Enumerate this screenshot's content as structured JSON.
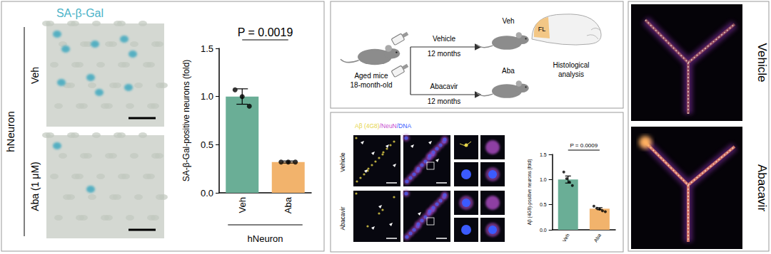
{
  "figure": {
    "panel_a": {
      "title": "SA-β-Gal",
      "group_label": "hNeuron",
      "row_labels": [
        "Veh",
        "Aba (1 μM)"
      ]
    },
    "schematic": {
      "start": [
        "Aged mice",
        "18-month-old"
      ],
      "arms": [
        {
          "treatment": "Vehicle",
          "duration": "12 months",
          "group": "Veh"
        },
        {
          "treatment": "Abacavir",
          "duration": "12 months",
          "group": "Aba"
        }
      ],
      "region": "FL",
      "readout": [
        "Histological",
        "analysis"
      ]
    },
    "panel_c": {
      "legend": [
        {
          "text": "Aβ (4G8)",
          "color": "#e6d54a"
        },
        {
          "text": "/NeuN",
          "color": "#c84fd0"
        },
        {
          "text": "/DNA",
          "color": "#3b5bff"
        }
      ],
      "row_labels": [
        "Vehicle",
        "Abacavir"
      ]
    },
    "panel_d": {
      "row_labels": [
        "Vehicle",
        "Abacavir"
      ]
    }
  },
  "chart_data": [
    {
      "type": "bar",
      "categories": [
        "Veh",
        "Aba"
      ],
      "values": [
        1.0,
        0.32
      ],
      "errors": [
        0.08,
        0.01
      ],
      "points": [
        [
          1.07,
          1.0,
          0.9
        ],
        [
          0.32,
          0.32,
          0.32
        ]
      ],
      "colors": [
        "#6aae96",
        "#f2b36c"
      ],
      "y_label": "SA-β-Gal-positive neurons (fold)",
      "x_label": "hNeuron",
      "annotation": "P = 0.0019",
      "ylim": [
        0,
        1.5
      ],
      "yticks": [
        {
          "value": 0,
          "label": "0.0"
        },
        {
          "value": 0.5,
          "label": "0.5"
        },
        {
          "value": 1.0,
          "label": "1.0"
        },
        {
          "value": 1.5,
          "label": "1.5"
        }
      ]
    },
    {
      "type": "bar",
      "categories": [
        "Veh",
        "Aba"
      ],
      "values": [
        1.0,
        0.42
      ],
      "errors": [
        0.07,
        0.02
      ],
      "points": [
        [
          1.15,
          1.02,
          0.95,
          0.88
        ],
        [
          0.47,
          0.43,
          0.41,
          0.38,
          0.36
        ]
      ],
      "colors": [
        "#6aae96",
        "#f2b36c"
      ],
      "y_label": "Aβ (4G8)-positive neurons (fold)",
      "annotation": "P = 0.0009",
      "ylim": [
        0,
        1.5
      ],
      "yticks": [
        {
          "value": 0,
          "label": "0.0"
        },
        {
          "value": 0.5,
          "label": "0.5"
        },
        {
          "value": 1.0,
          "label": "1.0"
        },
        {
          "value": 1.5,
          "label": "1.5"
        }
      ]
    }
  ]
}
